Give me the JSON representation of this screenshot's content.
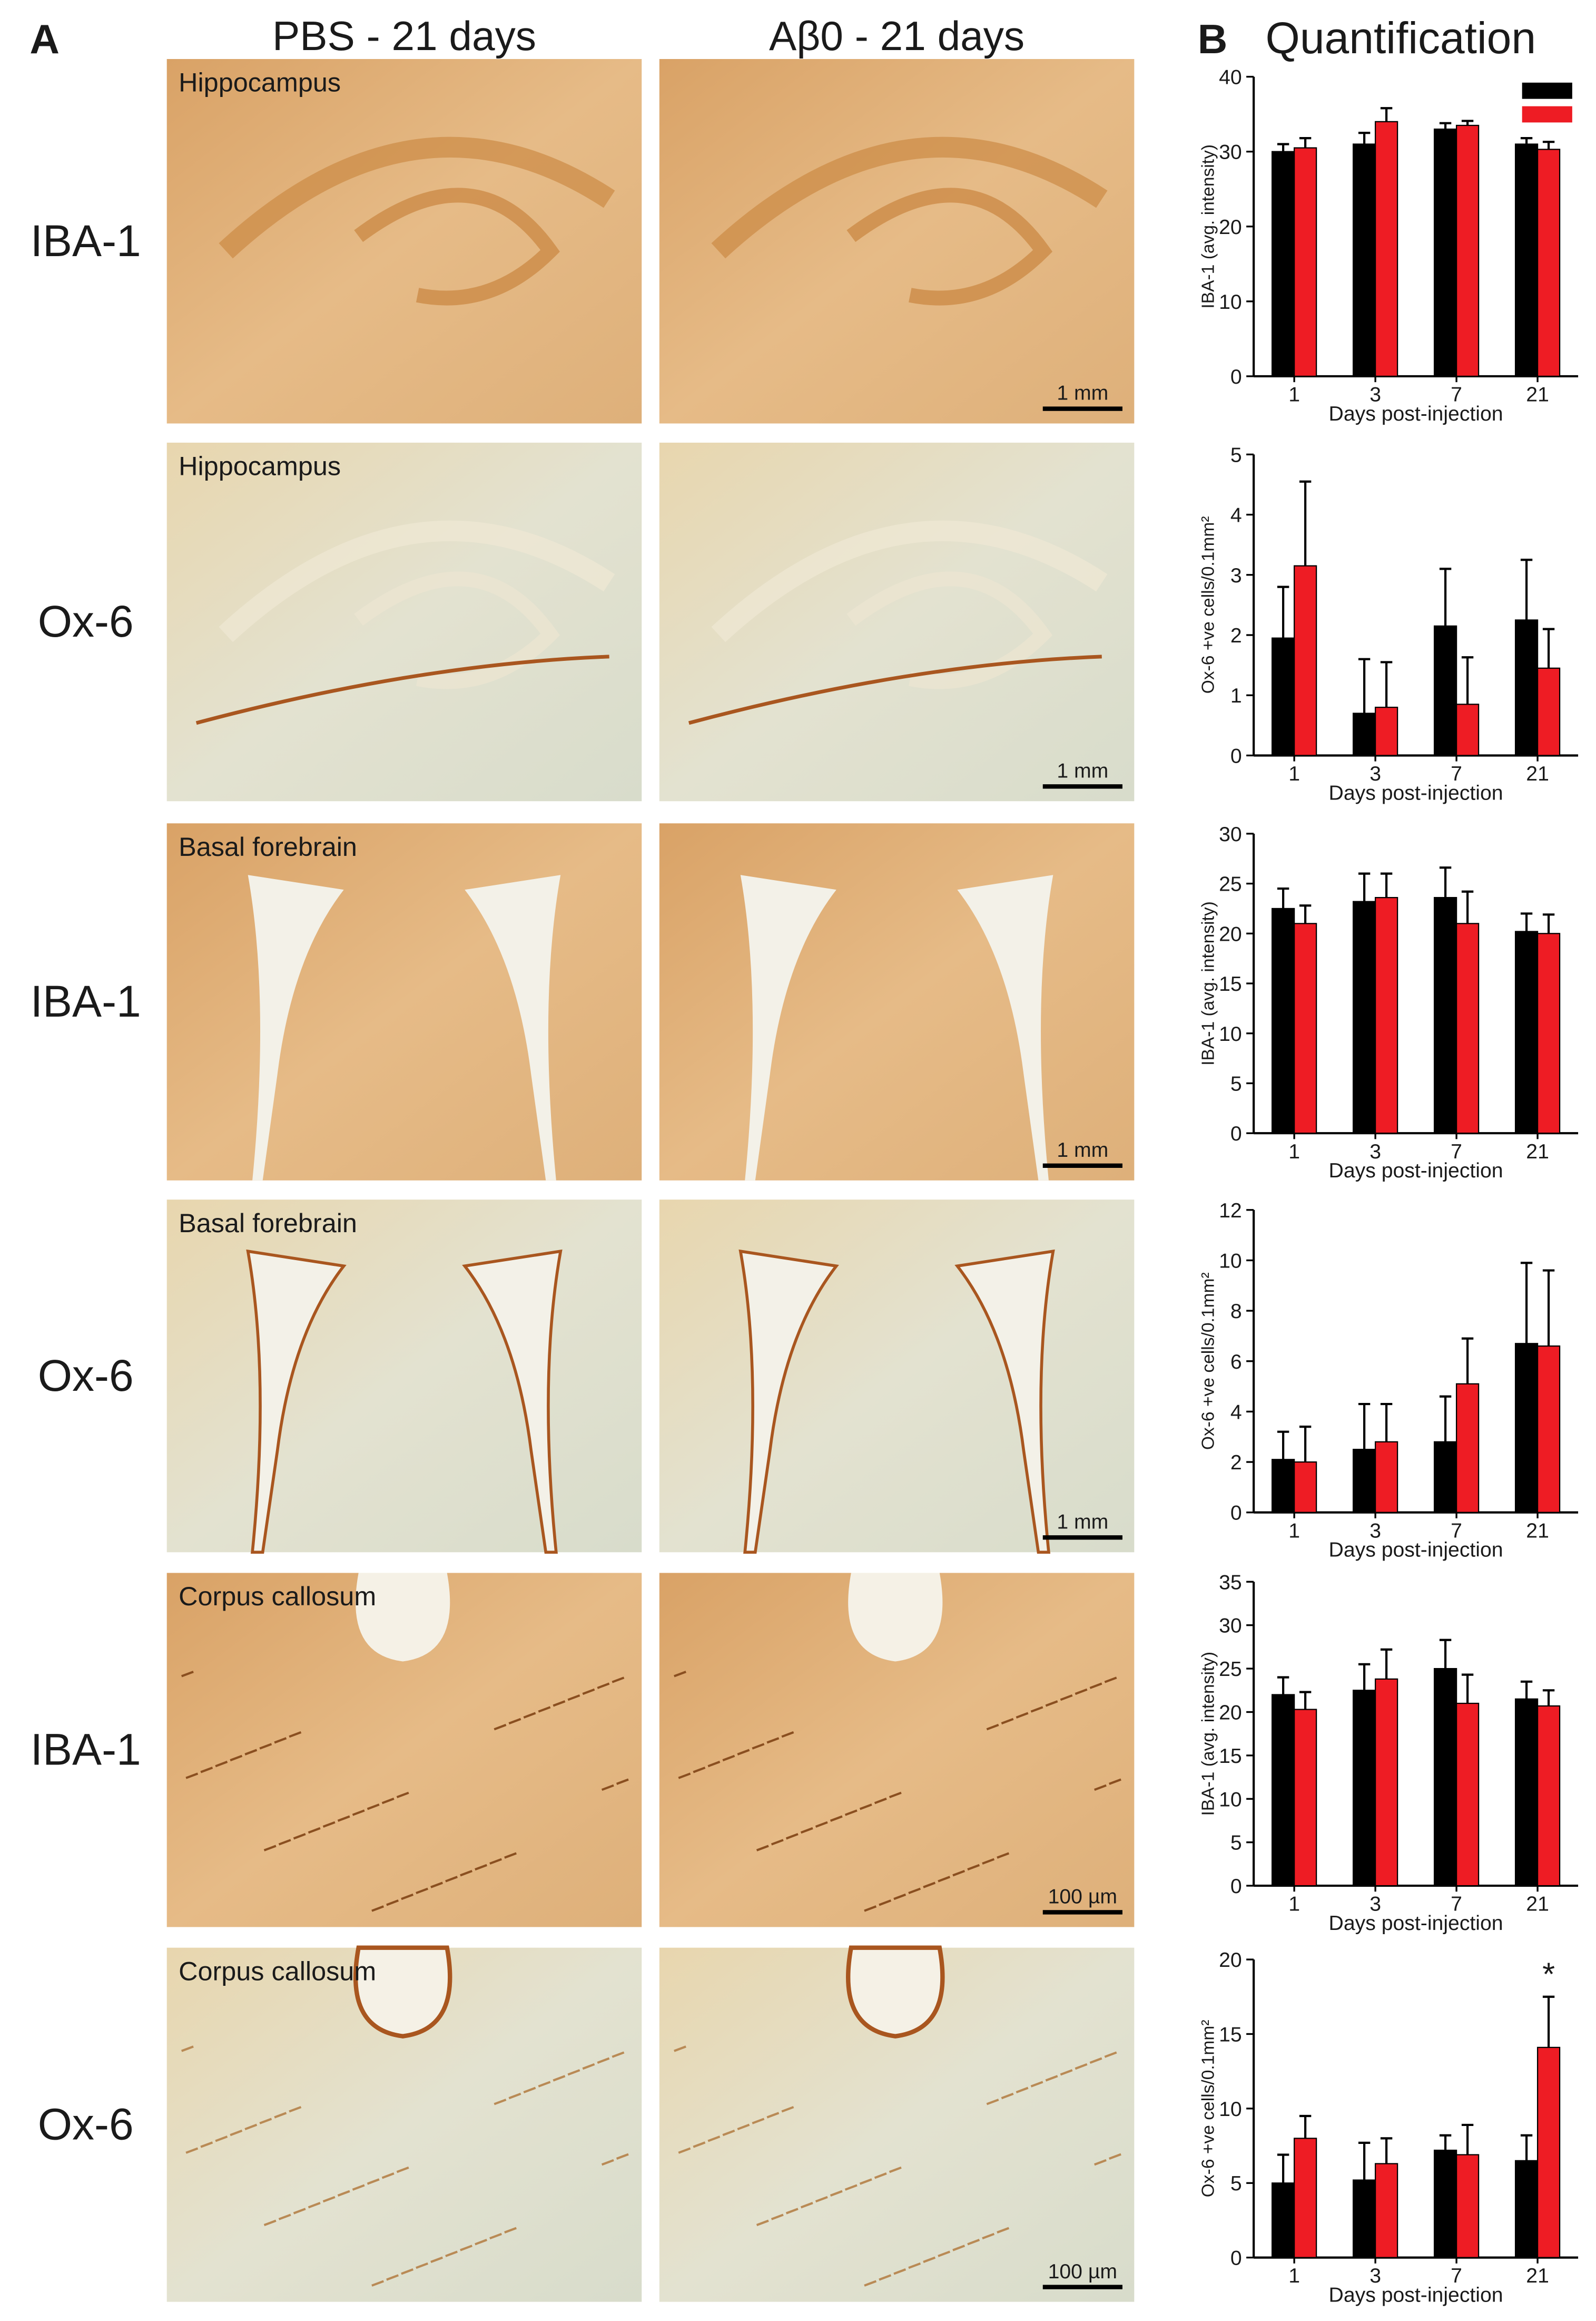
{
  "figure": {
    "panel_a": "A",
    "panel_b": "B",
    "panel_b_title": "Quantification",
    "columns": [
      "PBS - 21 days",
      "Aβ0 - 21 days"
    ],
    "rows": [
      "IBA-1",
      "Ox-6",
      "IBA-1",
      "Ox-6",
      "IBA-1",
      "Ox-6"
    ],
    "regions": [
      "Hippocampus",
      "Hippocampus",
      "Basal forebrain",
      "Basal forebrain",
      "Corpus callosum",
      "Corpus callosum"
    ],
    "scale_bars": [
      "1 mm",
      "1 mm",
      "1 mm",
      "1 mm",
      "100 µm",
      "100 µm"
    ]
  },
  "chart_data": [
    {
      "type": "bar",
      "ylabel": "IBA-1 (avg. intensity)",
      "xlabel": "Days post-injection",
      "categories": [
        "1",
        "3",
        "7",
        "21"
      ],
      "legend": "upper right",
      "series": [
        {
          "color": "#000000",
          "values": [
            30,
            31,
            33,
            31
          ],
          "errors": [
            1,
            1.5,
            0.8,
            0.8
          ]
        },
        {
          "color": "#ee1c24",
          "values": [
            30.5,
            34,
            33.5,
            30.3
          ],
          "errors": [
            1.3,
            1.8,
            0.6,
            1
          ]
        }
      ],
      "ylim": [
        0,
        40
      ],
      "yticks": [
        0,
        10,
        20,
        30,
        40
      ]
    },
    {
      "type": "bar",
      "ylabel": "Ox-6 +ve cells/0.1mm²",
      "xlabel": "Days post-injection",
      "categories": [
        "1",
        "3",
        "7",
        "21"
      ],
      "series": [
        {
          "color": "#000000",
          "values": [
            1.95,
            0.7,
            2.15,
            2.25
          ],
          "errors": [
            0.85,
            0.9,
            0.95,
            1.0
          ]
        },
        {
          "color": "#ee1c24",
          "values": [
            3.15,
            0.8,
            0.85,
            1.45
          ],
          "errors": [
            1.4,
            0.75,
            0.78,
            0.65
          ]
        }
      ],
      "ylim": [
        0,
        5
      ],
      "yticks": [
        0,
        1,
        2,
        3,
        4,
        5
      ]
    },
    {
      "type": "bar",
      "ylabel": "IBA-1 (avg. intensity)",
      "xlabel": "Days post-injection",
      "categories": [
        "1",
        "3",
        "7",
        "21"
      ],
      "series": [
        {
          "color": "#000000",
          "values": [
            22.5,
            23.2,
            23.6,
            20.2
          ],
          "errors": [
            2,
            2.8,
            3,
            1.8
          ]
        },
        {
          "color": "#ee1c24",
          "values": [
            21,
            23.6,
            21,
            20
          ],
          "errors": [
            1.8,
            2.4,
            3.2,
            1.9
          ]
        }
      ],
      "ylim": [
        0,
        30
      ],
      "yticks": [
        0,
        5,
        10,
        15,
        20,
        25,
        30
      ]
    },
    {
      "type": "bar",
      "ylabel": "Ox-6 +ve cells/0.1mm²",
      "xlabel": "Days post-injection",
      "categories": [
        "1",
        "3",
        "7",
        "21"
      ],
      "series": [
        {
          "color": "#000000",
          "values": [
            2.1,
            2.5,
            2.8,
            6.7
          ],
          "errors": [
            1.1,
            1.8,
            1.8,
            3.2
          ]
        },
        {
          "color": "#ee1c24",
          "values": [
            2.0,
            2.8,
            5.1,
            6.6
          ],
          "errors": [
            1.4,
            1.5,
            1.8,
            3.0
          ]
        }
      ],
      "ylim": [
        0,
        12
      ],
      "yticks": [
        0,
        2,
        4,
        6,
        8,
        10,
        12
      ]
    },
    {
      "type": "bar",
      "ylabel": "IBA-1 (avg. intensity)",
      "xlabel": "Days post-injection",
      "categories": [
        "1",
        "3",
        "7",
        "21"
      ],
      "series": [
        {
          "color": "#000000",
          "values": [
            22,
            22.5,
            25,
            21.5
          ],
          "errors": [
            2,
            3,
            3.3,
            2
          ]
        },
        {
          "color": "#ee1c24",
          "values": [
            20.3,
            23.8,
            21,
            20.7
          ],
          "errors": [
            2,
            3.4,
            3.3,
            1.8
          ]
        }
      ],
      "ylim": [
        0,
        35
      ],
      "yticks": [
        0,
        5,
        10,
        15,
        20,
        25,
        30,
        35
      ]
    },
    {
      "type": "bar",
      "ylabel": "Ox-6 +ve cells/0.1mm²",
      "xlabel": "Days post-injection",
      "categories": [
        "1",
        "3",
        "7",
        "21"
      ],
      "series": [
        {
          "color": "#000000",
          "values": [
            5,
            5.2,
            7.2,
            6.5
          ],
          "errors": [
            1.9,
            2.5,
            1,
            1.7
          ]
        },
        {
          "color": "#ee1c24",
          "values": [
            8,
            6.3,
            6.9,
            14.1
          ],
          "errors": [
            1.5,
            1.7,
            2,
            3.4
          ]
        }
      ],
      "ylim": [
        0,
        20
      ],
      "yticks": [
        0,
        5,
        10,
        15,
        20
      ],
      "annotation": "*"
    }
  ]
}
